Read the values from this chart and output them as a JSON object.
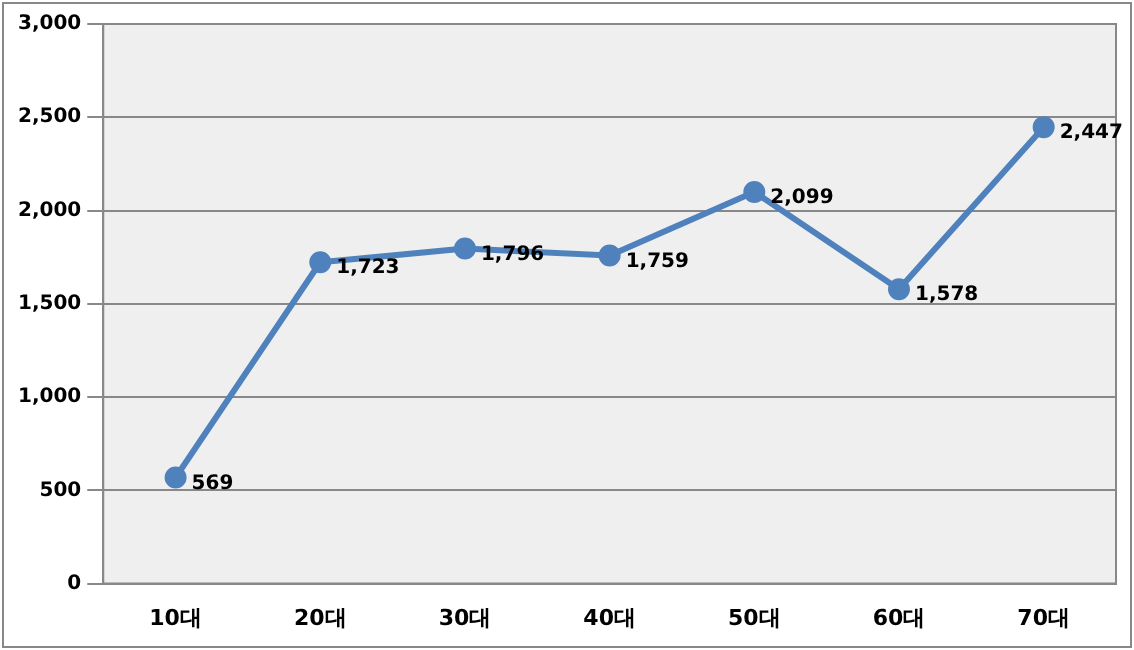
{
  "chart_data": {
    "type": "line",
    "categories": [
      "10대",
      "20대",
      "30대",
      "40대",
      "50대",
      "60대",
      "70대"
    ],
    "series": [
      {
        "color": "#4f81bd",
        "values": [
          569,
          1723,
          1796,
          1759,
          2099,
          1578,
          2447
        ],
        "value_labels": [
          "569",
          "1,723",
          "1,796",
          "1,759",
          "2,099",
          "1,578",
          "2,447"
        ]
      }
    ],
    "ylim": [
      0,
      3000
    ],
    "yticks": [
      {
        "value": 0,
        "label": "0"
      },
      {
        "value": 500,
        "label": "500"
      },
      {
        "value": 1000,
        "label": "1,000"
      },
      {
        "value": 1500,
        "label": "1,500"
      },
      {
        "value": 2000,
        "label": "2,000"
      },
      {
        "value": 2500,
        "label": "2,500"
      },
      {
        "value": 3000,
        "label": "3,000"
      }
    ],
    "grid": "y",
    "legend": false,
    "marker": "circle",
    "line_style": "solid"
  }
}
